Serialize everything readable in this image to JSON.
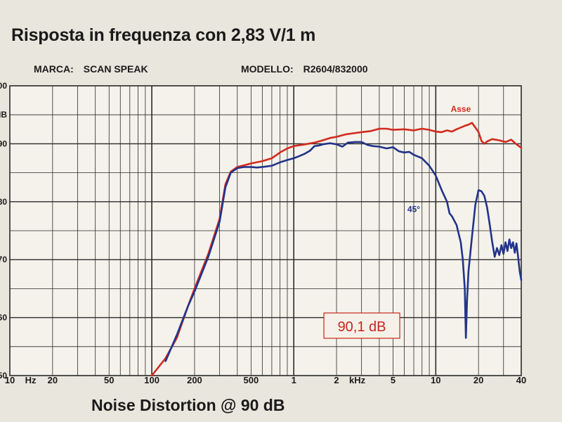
{
  "page": {
    "title": "Risposta in frequenza con 2,83 V/1 m",
    "brand_label": "MARCA:",
    "brand_value": "SCAN SPEAK",
    "model_label": "MODELLO:",
    "model_value": "R2604/832000",
    "footer_text": "Noise Distortion @ 90 dB"
  },
  "chart_data": {
    "type": "line",
    "title": "Risposta in frequenza con 2,83 V/1 m",
    "xscale": "log",
    "xlim": [
      10,
      40000
    ],
    "ylim": [
      50,
      100
    ],
    "xlabel": "",
    "ylabel": "",
    "x_tick_labels": [
      {
        "v": 10,
        "t": "10"
      },
      {
        "v": 14,
        "t": "Hz"
      },
      {
        "v": 20,
        "t": "20"
      },
      {
        "v": 50,
        "t": "50"
      },
      {
        "v": 100,
        "t": "100"
      },
      {
        "v": 200,
        "t": "200"
      },
      {
        "v": 500,
        "t": "500"
      },
      {
        "v": 1000,
        "t": "1"
      },
      {
        "v": 2000,
        "t": "2"
      },
      {
        "v": 2800,
        "t": "kHz"
      },
      {
        "v": 5000,
        "t": "5"
      },
      {
        "v": 10000,
        "t": "10"
      },
      {
        "v": 20000,
        "t": "20"
      },
      {
        "v": 40000,
        "t": "40"
      }
    ],
    "y_tick_labels": [
      {
        "v": 100,
        "t": "00"
      },
      {
        "v": 95,
        "t": "IB"
      },
      {
        "v": 90,
        "t": "90"
      },
      {
        "v": 80,
        "t": "80"
      },
      {
        "v": 70,
        "t": "70"
      },
      {
        "v": 60,
        "t": "60"
      },
      {
        "v": 50,
        "t": "50"
      }
    ],
    "grid": true,
    "colors": {
      "asse": "#d42a1e",
      "deg45": "#22338a",
      "grid": "#2a2a2a"
    },
    "annotation": {
      "text": "90,1 dB",
      "x": 2000,
      "y": 58.5,
      "color": "#c8261c"
    },
    "series": [
      {
        "name": "Asse",
        "color": "#d42a1e",
        "label_at": {
          "x": 15000,
          "y": 95.5
        },
        "points": [
          [
            100,
            50
          ],
          [
            125,
            53
          ],
          [
            150,
            56.5
          ],
          [
            180,
            62
          ],
          [
            200,
            65
          ],
          [
            250,
            71
          ],
          [
            300,
            77
          ],
          [
            330,
            83
          ],
          [
            360,
            85.2
          ],
          [
            400,
            86
          ],
          [
            450,
            86.3
          ],
          [
            500,
            86.6
          ],
          [
            600,
            87
          ],
          [
            700,
            87.5
          ],
          [
            800,
            88.5
          ],
          [
            900,
            89.2
          ],
          [
            1000,
            89.6
          ],
          [
            1200,
            89.9
          ],
          [
            1400,
            90.2
          ],
          [
            1600,
            90.6
          ],
          [
            1800,
            91
          ],
          [
            2000,
            91.2
          ],
          [
            2300,
            91.6
          ],
          [
            2600,
            91.8
          ],
          [
            3000,
            92
          ],
          [
            3500,
            92.2
          ],
          [
            4000,
            92.6
          ],
          [
            4500,
            92.6
          ],
          [
            5000,
            92.4
          ],
          [
            6000,
            92.5
          ],
          [
            7000,
            92.3
          ],
          [
            8000,
            92.6
          ],
          [
            9000,
            92.4
          ],
          [
            10000,
            92.1
          ],
          [
            11000,
            92
          ],
          [
            12000,
            92.3
          ],
          [
            13000,
            92.1
          ],
          [
            14000,
            92.5
          ],
          [
            15000,
            92.8
          ],
          [
            16000,
            93.1
          ],
          [
            17000,
            93.3
          ],
          [
            18000,
            93.6
          ],
          [
            19000,
            92.8
          ],
          [
            20000,
            92
          ],
          [
            21000,
            90.5
          ],
          [
            22000,
            90
          ],
          [
            23000,
            90.4
          ],
          [
            25000,
            90.8
          ],
          [
            28000,
            90.6
          ],
          [
            31000,
            90.3
          ],
          [
            34000,
            90.7
          ],
          [
            37000,
            89.9
          ],
          [
            40000,
            89.3
          ]
        ]
      },
      {
        "name": "45°",
        "color": "#22338a",
        "label_at": {
          "x": 7000,
          "y": 78.2
        },
        "points": [
          [
            125,
            52.5
          ],
          [
            150,
            57
          ],
          [
            180,
            62
          ],
          [
            200,
            64.5
          ],
          [
            250,
            70.5
          ],
          [
            300,
            76.5
          ],
          [
            330,
            82.5
          ],
          [
            360,
            85
          ],
          [
            400,
            85.8
          ],
          [
            450,
            86
          ],
          [
            500,
            86
          ],
          [
            550,
            85.9
          ],
          [
            600,
            86
          ],
          [
            700,
            86.2
          ],
          [
            800,
            86.8
          ],
          [
            900,
            87.2
          ],
          [
            1000,
            87.5
          ],
          [
            1100,
            87.9
          ],
          [
            1200,
            88.3
          ],
          [
            1300,
            88.8
          ],
          [
            1400,
            89.6
          ],
          [
            1500,
            89.7
          ],
          [
            1600,
            89.9
          ],
          [
            1800,
            90.1
          ],
          [
            2000,
            89.9
          ],
          [
            2200,
            89.5
          ],
          [
            2400,
            90.2
          ],
          [
            2700,
            90.3
          ],
          [
            3000,
            90.3
          ],
          [
            3300,
            89.8
          ],
          [
            3600,
            89.6
          ],
          [
            4000,
            89.5
          ],
          [
            4500,
            89.2
          ],
          [
            5000,
            89.4
          ],
          [
            5500,
            88.7
          ],
          [
            6000,
            88.5
          ],
          [
            6500,
            88.6
          ],
          [
            7000,
            88.1
          ],
          [
            8000,
            87.5
          ],
          [
            9000,
            86.2
          ],
          [
            10000,
            84.5
          ],
          [
            11000,
            82
          ],
          [
            12000,
            80
          ],
          [
            12500,
            78
          ],
          [
            13000,
            77.5
          ],
          [
            14000,
            76
          ],
          [
            15000,
            73
          ],
          [
            15500,
            70
          ],
          [
            16000,
            65
          ],
          [
            16300,
            56.5
          ],
          [
            16600,
            63
          ],
          [
            17000,
            68
          ],
          [
            18000,
            74
          ],
          [
            19000,
            79.5
          ],
          [
            20000,
            82
          ],
          [
            21000,
            81.8
          ],
          [
            22000,
            81
          ],
          [
            23000,
            79
          ],
          [
            24000,
            76
          ],
          [
            25000,
            73
          ],
          [
            26000,
            70.5
          ],
          [
            27000,
            72
          ],
          [
            28000,
            70.8
          ],
          [
            29000,
            72.5
          ],
          [
            30000,
            71
          ],
          [
            31000,
            73
          ],
          [
            32000,
            71.5
          ],
          [
            33000,
            73.5
          ],
          [
            34000,
            72
          ],
          [
            35000,
            73
          ],
          [
            36000,
            71.2
          ],
          [
            37000,
            72.8
          ],
          [
            38000,
            70.5
          ],
          [
            39000,
            68
          ],
          [
            40000,
            66.5
          ]
        ]
      }
    ]
  }
}
